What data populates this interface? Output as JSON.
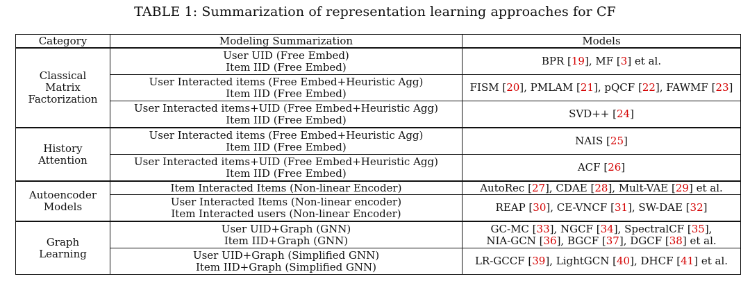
{
  "caption": "TABLE 1: Summarization of representation learning approaches for CF",
  "headers": [
    "Category",
    "Modeling Summarization",
    "Models"
  ],
  "groups": [
    {
      "category": [
        "Classical",
        "Matrix",
        "Factorization"
      ],
      "rows": [
        {
          "modeling": [
            "User UID (Free Embed)",
            "Item IID (Free Embed)"
          ],
          "models": [
            [
              {
                "t": "BPR ["
              },
              {
                "t": "19",
                "ref": true
              },
              {
                "t": "], MF ["
              },
              {
                "t": "3",
                "ref": true
              },
              {
                "t": "] et al."
              }
            ]
          ]
        },
        {
          "modeling": [
            "User Interacted items (Free Embed+Heuristic Agg)",
            "Item IID (Free Embed)"
          ],
          "models": [
            [
              {
                "t": "FISM ["
              },
              {
                "t": "20",
                "ref": true
              },
              {
                "t": "], PMLAM ["
              },
              {
                "t": "21",
                "ref": true
              },
              {
                "t": "], pQCF ["
              },
              {
                "t": "22",
                "ref": true
              },
              {
                "t": "], FAWMF ["
              },
              {
                "t": "23",
                "ref": true
              },
              {
                "t": "]"
              }
            ]
          ]
        },
        {
          "modeling": [
            "User Interacted items+UID (Free Embed+Heuristic Agg)",
            "Item IID (Free Embed)"
          ],
          "models": [
            [
              {
                "t": "SVD++ ["
              },
              {
                "t": "24",
                "ref": true
              },
              {
                "t": "]"
              }
            ]
          ]
        }
      ]
    },
    {
      "category": [
        "History",
        "Attention"
      ],
      "rows": [
        {
          "modeling": [
            "User Interacted items (Free Embed+Heuristic Agg)",
            "Item IID (Free Embed)"
          ],
          "models": [
            [
              {
                "t": "NAIS ["
              },
              {
                "t": "25",
                "ref": true
              },
              {
                "t": "]"
              }
            ]
          ]
        },
        {
          "modeling": [
            "User Interacted items+UID (Free Embed+Heuristic Agg)",
            "Item IID (Free Embed)"
          ],
          "models": [
            [
              {
                "t": "ACF ["
              },
              {
                "t": "26",
                "ref": true
              },
              {
                "t": "]"
              }
            ]
          ]
        }
      ]
    },
    {
      "category": [
        "Autoencoder",
        "Models"
      ],
      "rows": [
        {
          "modeling": [
            "Item Interacted Items (Non-linear Encoder)"
          ],
          "models": [
            [
              {
                "t": "AutoRec ["
              },
              {
                "t": "27",
                "ref": true
              },
              {
                "t": "], CDAE ["
              },
              {
                "t": "28",
                "ref": true
              },
              {
                "t": "], Mult-VAE ["
              },
              {
                "t": "29",
                "ref": true
              },
              {
                "t": "] et al."
              }
            ]
          ]
        },
        {
          "modeling": [
            "User Interacted Items (Non-linear encoder)",
            "Item Interacted users (Non-linear Encoder)"
          ],
          "models": [
            [
              {
                "t": "REAP ["
              },
              {
                "t": "30",
                "ref": true
              },
              {
                "t": "], CE-VNCF ["
              },
              {
                "t": "31",
                "ref": true
              },
              {
                "t": "], SW-DAE ["
              },
              {
                "t": "32",
                "ref": true
              },
              {
                "t": "]"
              }
            ]
          ]
        }
      ]
    },
    {
      "category": [
        "Graph",
        "Learning"
      ],
      "rows": [
        {
          "modeling": [
            "User UID+Graph (GNN)",
            "Item IID+Graph (GNN)"
          ],
          "models": [
            [
              {
                "t": "GC-MC ["
              },
              {
                "t": "33",
                "ref": true
              },
              {
                "t": "], NGCF ["
              },
              {
                "t": "34",
                "ref": true
              },
              {
                "t": "], SpectralCF ["
              },
              {
                "t": "35",
                "ref": true
              },
              {
                "t": "],"
              }
            ],
            [
              {
                "t": "NIA-GCN ["
              },
              {
                "t": "36",
                "ref": true
              },
              {
                "t": "], BGCF ["
              },
              {
                "t": "37",
                "ref": true
              },
              {
                "t": "], DGCF ["
              },
              {
                "t": "38",
                "ref": true
              },
              {
                "t": "] et al."
              }
            ]
          ]
        },
        {
          "modeling": [
            "User UID+Graph (Simplified GNN)",
            "Item IID+Graph (Simplified GNN)"
          ],
          "models": [
            [
              {
                "t": "LR-GCCF ["
              },
              {
                "t": "39",
                "ref": true
              },
              {
                "t": "], LightGCN ["
              },
              {
                "t": "40",
                "ref": true
              },
              {
                "t": "], DHCF ["
              },
              {
                "t": "41",
                "ref": true
              },
              {
                "t": "] et al."
              }
            ]
          ]
        }
      ]
    }
  ]
}
